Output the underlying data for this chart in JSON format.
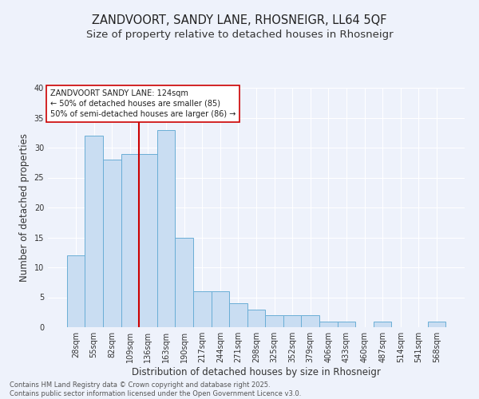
{
  "title1": "ZANDVOORT, SANDY LANE, RHOSNEIGR, LL64 5QF",
  "title2": "Size of property relative to detached houses in Rhosneigr",
  "xlabel": "Distribution of detached houses by size in Rhosneigr",
  "ylabel": "Number of detached properties",
  "categories": [
    "28sqm",
    "55sqm",
    "82sqm",
    "109sqm",
    "136sqm",
    "163sqm",
    "190sqm",
    "217sqm",
    "244sqm",
    "271sqm",
    "298sqm",
    "325sqm",
    "352sqm",
    "379sqm",
    "406sqm",
    "433sqm",
    "460sqm",
    "487sqm",
    "514sqm",
    "541sqm",
    "568sqm"
  ],
  "values": [
    12,
    32,
    28,
    29,
    29,
    33,
    15,
    6,
    6,
    4,
    3,
    2,
    2,
    2,
    1,
    1,
    0,
    1,
    0,
    0,
    1
  ],
  "bar_color": "#c9ddf2",
  "bar_edge_color": "#6aaed6",
  "background_color": "#eef2fb",
  "grid_color": "#ffffff",
  "red_line_x": 3.5,
  "annotation_title": "ZANDVOORT SANDY LANE: 124sqm",
  "annotation_line1": "← 50% of detached houses are smaller (85)",
  "annotation_line2": "50% of semi-detached houses are larger (86) →",
  "annotation_box_color": "#ffffff",
  "annotation_border_color": "#cc0000",
  "ylim": [
    0,
    40
  ],
  "yticks": [
    0,
    5,
    10,
    15,
    20,
    25,
    30,
    35,
    40
  ],
  "footer": "Contains HM Land Registry data © Crown copyright and database right 2025.\nContains public sector information licensed under the Open Government Licence v3.0.",
  "title1_fontsize": 10.5,
  "title2_fontsize": 9.5,
  "xlabel_fontsize": 8.5,
  "ylabel_fontsize": 8.5,
  "tick_fontsize": 7,
  "annotation_fontsize": 7,
  "footer_fontsize": 6
}
